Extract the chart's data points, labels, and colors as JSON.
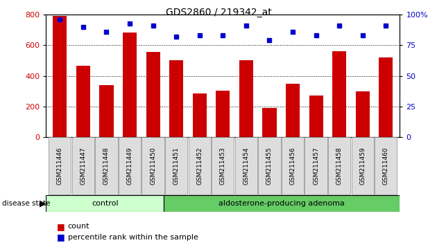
{
  "title": "GDS2860 / 219342_at",
  "samples": [
    "GSM211446",
    "GSM211447",
    "GSM211448",
    "GSM211449",
    "GSM211450",
    "GSM211451",
    "GSM211452",
    "GSM211453",
    "GSM211454",
    "GSM211455",
    "GSM211456",
    "GSM211457",
    "GSM211458",
    "GSM211459",
    "GSM211460"
  ],
  "counts": [
    790,
    468,
    342,
    685,
    558,
    505,
    285,
    305,
    505,
    193,
    348,
    272,
    562,
    300,
    522
  ],
  "percentiles": [
    96,
    90,
    86,
    93,
    91,
    82,
    83,
    83,
    91,
    79,
    86,
    83,
    91,
    83,
    91
  ],
  "control_count": 5,
  "group1_label": "control",
  "group2_label": "aldosterone-producing adenoma",
  "group1_color": "#ccffcc",
  "group2_color": "#66cc66",
  "bar_color": "#cc0000",
  "dot_color": "#0000cc",
  "ylim_left": [
    0,
    800
  ],
  "ylim_right": [
    0,
    100
  ],
  "yticks_left": [
    0,
    200,
    400,
    600,
    800
  ],
  "yticks_right": [
    0,
    25,
    50,
    75,
    100
  ],
  "disease_state_label": "disease state",
  "legend_count": "count",
  "legend_percentile": "percentile rank within the sample",
  "background_color": "#ffffff"
}
